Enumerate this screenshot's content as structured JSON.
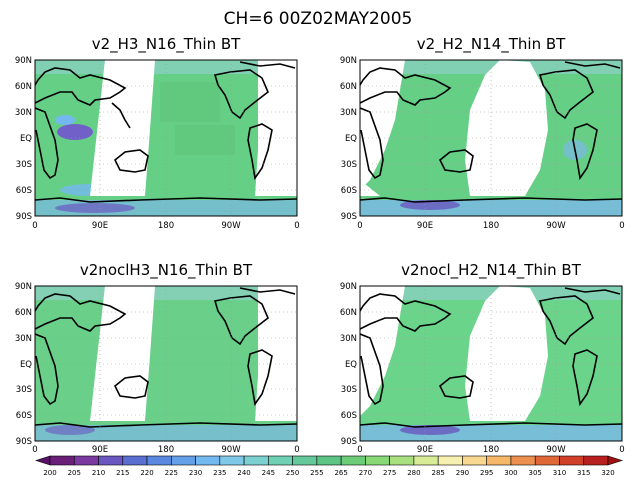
{
  "figure": {
    "title": "CH=6    00Z02MAY2005"
  },
  "colors": {
    "swath_fill": "#6fd48c",
    "swath_fill_alt": "#5fca78",
    "swath_edge": "#8fd0c8",
    "cold_core": "#7060c8",
    "land_outline": "#000000",
    "frame": "#000000",
    "grid": "#9a9a9a"
  },
  "axes_common": {
    "lat_ticks": [
      "90N",
      "60N",
      "30N",
      "EQ",
      "30S",
      "60S",
      "90S"
    ],
    "lon_ticks": [
      "0",
      "90E",
      "180",
      "90W",
      "0"
    ]
  },
  "chart_data": [
    {
      "type": "heatmap",
      "title": "v2_H3_N16_Thin BT",
      "xlim": [
        0,
        360
      ],
      "ylim": [
        -90,
        90
      ],
      "field_variable": "BT",
      "swath_pattern": "two descending orbit gaps",
      "gaps": [
        [
          98,
          145
        ],
        [
          320,
          360
        ]
      ],
      "swath_summary": "mostly 255-275 K, colder 230-245 K over Indian Ocean EQ"
    },
    {
      "type": "heatmap",
      "title": "v2_H2_N14_Thin BT",
      "xlim": [
        0,
        360
      ],
      "ylim": [
        -90,
        90
      ],
      "field_variable": "BT",
      "swath_pattern": "wide orbit gaps",
      "gaps": [
        [
          0,
          60
        ],
        [
          140,
          245
        ]
      ],
      "swath_summary": "mostly 255-275 K, 225-240 K near 70S"
    },
    {
      "type": "heatmap",
      "title": "v2noclH3_N16_Thin BT",
      "xlim": [
        0,
        360
      ],
      "ylim": [
        -90,
        90
      ],
      "field_variable": "BT",
      "swath_pattern": "two descending orbit gaps",
      "gaps": [
        [
          98,
          145
        ],
        [
          320,
          360
        ]
      ],
      "swath_summary": "mostly 260-275 K"
    },
    {
      "type": "heatmap",
      "title": "v2nocl_H2_N14_Thin BT",
      "xlim": [
        0,
        360
      ],
      "ylim": [
        -90,
        90
      ],
      "field_variable": "BT",
      "swath_pattern": "wide orbit gaps",
      "gaps": [
        [
          0,
          60
        ],
        [
          140,
          245
        ]
      ],
      "swath_summary": "mostly 260-280 K, 225-240 K near 70S"
    }
  ],
  "colorbar": {
    "labels": [
      "200",
      "205",
      "210",
      "215",
      "220",
      "225",
      "230",
      "235",
      "240",
      "245",
      "250",
      "255",
      "265",
      "270",
      "275",
      "280",
      "285",
      "290",
      "295",
      "300",
      "305",
      "310",
      "315",
      "320"
    ],
    "colors": [
      "#5a1068",
      "#6a2078",
      "#7a3aa0",
      "#6a58c0",
      "#5a70d0",
      "#5a88e0",
      "#64a0e8",
      "#74b8f0",
      "#80c8e8",
      "#7cd0d0",
      "#70d0b4",
      "#64c89a",
      "#5cc484",
      "#6ccc78",
      "#88d878",
      "#a8e080",
      "#d8ec98",
      "#f8f0b0",
      "#f8d890",
      "#f4b868",
      "#ec9050",
      "#e06838",
      "#d04028",
      "#b82020",
      "#a01010"
    ]
  }
}
